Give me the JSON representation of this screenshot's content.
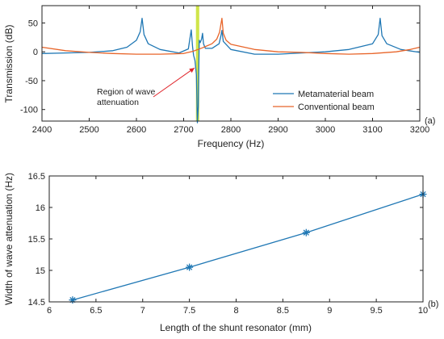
{
  "chart_data": [
    {
      "panel": "(a)",
      "type": "line",
      "xlabel": "Frequency (Hz)",
      "ylabel": "Transmission (dB)",
      "xlim": [
        2400,
        3200
      ],
      "ylim": [
        -120,
        80
      ],
      "xticks": [
        2400,
        2500,
        2600,
        2700,
        2800,
        2900,
        3000,
        3100,
        3200
      ],
      "yticks": [
        -100,
        -50,
        0,
        50
      ],
      "grid": false,
      "legend_position": "bottom-right",
      "highlight_band": {
        "x_range": [
          2726,
          2733
        ],
        "color": "#c8e02a"
      },
      "annotation": {
        "text_lines": [
          "Region of wave",
          "attenuation"
        ],
        "arrow_target": [
          2728,
          -28
        ]
      },
      "series": [
        {
          "name": "Metamaterial beam",
          "color": "#1f77b4",
          "x": [
            2400,
            2450,
            2500,
            2550,
            2580,
            2600,
            2608,
            2612,
            2616,
            2625,
            2650,
            2690,
            2710,
            2716,
            2719,
            2721,
            2724,
            2727,
            2729,
            2731,
            2733,
            2735,
            2738,
            2740,
            2742,
            2746,
            2760,
            2775,
            2779,
            2781,
            2784,
            2800,
            2850,
            2900,
            2950,
            3000,
            3050,
            3100,
            3112,
            3116,
            3120,
            3130,
            3160,
            3200
          ],
          "y": [
            -3,
            -2,
            -1,
            2,
            8,
            20,
            35,
            58,
            30,
            14,
            4,
            -2,
            5,
            38,
            8,
            -6,
            -15,
            -40,
            -123,
            -95,
            20,
            16,
            22,
            32,
            14,
            6,
            6,
            14,
            28,
            37,
            18,
            4,
            -4,
            -4,
            -2,
            0,
            4,
            14,
            30,
            58,
            28,
            14,
            4,
            -1
          ]
        },
        {
          "name": "Conventional beam",
          "color": "#e8652a",
          "x": [
            2400,
            2450,
            2500,
            2550,
            2600,
            2650,
            2700,
            2720,
            2740,
            2760,
            2770,
            2776,
            2781,
            2784,
            2790,
            2800,
            2850,
            2900,
            2950,
            3000,
            3050,
            3100,
            3150,
            3180,
            3200
          ],
          "y": [
            8,
            2,
            -1,
            -3,
            -4,
            -4,
            -3,
            1,
            7,
            14,
            22,
            34,
            58,
            32,
            20,
            13,
            4,
            0,
            -1,
            -3,
            -4,
            -3,
            0,
            4,
            8
          ]
        }
      ]
    },
    {
      "panel": "(b)",
      "type": "line",
      "xlabel": "Length of the shunt resonator (mm)",
      "ylabel": "Width of wave attenuation (Hz)",
      "xlim": [
        6,
        10
      ],
      "ylim": [
        14.5,
        16.5
      ],
      "xticks": [
        "6",
        "6.5",
        "7",
        "7.5",
        "8",
        "8.5",
        "9",
        "9.5",
        "10"
      ],
      "yticks": [
        "14.5",
        "15",
        "15.5",
        "16",
        "16.5"
      ],
      "grid": false,
      "series": [
        {
          "color": "#1f77b4",
          "marker": "asterisk",
          "x": [
            6.25,
            7.5,
            8.75,
            10
          ],
          "y": [
            14.53,
            15.05,
            15.6,
            16.21
          ]
        }
      ]
    }
  ]
}
